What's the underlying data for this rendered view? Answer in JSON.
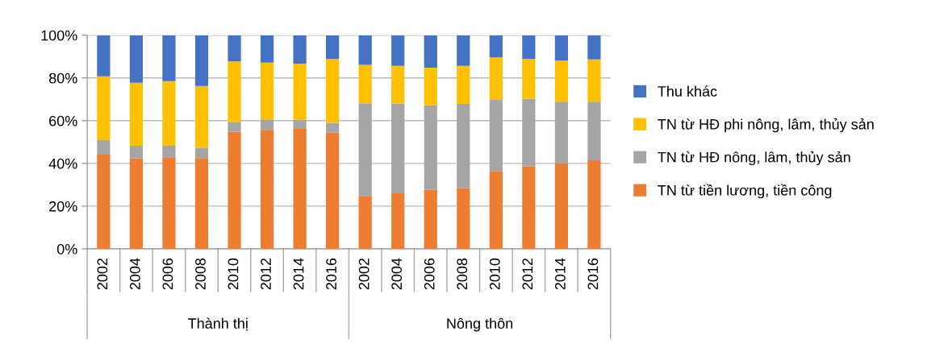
{
  "chart_data": {
    "type": "bar",
    "stacked": true,
    "categories": [
      "2002",
      "2004",
      "2006",
      "2008",
      "2010",
      "2012",
      "2014",
      "2016",
      "2002",
      "2004",
      "2006",
      "2008",
      "2010",
      "2012",
      "2014",
      "2016"
    ],
    "series": [
      {
        "name": "TN từ tiền lương, tiền công",
        "color": "#ed7d31",
        "values": [
          44.1,
          42.4,
          42.9,
          42.5,
          54.8,
          55.7,
          56.2,
          54.4,
          24.8,
          26.0,
          27.7,
          28.4,
          36.5,
          38.5,
          40.0,
          41.5
        ]
      },
      {
        "name": "TN từ HĐ nông, lâm, thủy sản",
        "color": "#a5a5a5",
        "values": [
          6.8,
          5.8,
          5.3,
          4.8,
          4.4,
          4.9,
          4.2,
          4.6,
          43.3,
          42.0,
          39.5,
          39.4,
          33.2,
          31.8,
          28.9,
          27.4
        ]
      },
      {
        "name": "TN từ HĐ phi nông, lâm, thủy sản",
        "color": "#ffc000",
        "values": [
          29.9,
          29.5,
          30.3,
          28.9,
          28.5,
          26.6,
          26.3,
          29.9,
          18.0,
          17.7,
          17.6,
          17.9,
          19.9,
          18.7,
          19.2,
          19.8
        ]
      },
      {
        "name": "Thu khác",
        "color": "#4472c4",
        "values": [
          19.2,
          22.3,
          21.5,
          23.8,
          12.3,
          12.8,
          13.3,
          11.1,
          13.9,
          14.3,
          15.2,
          14.3,
          10.4,
          11.0,
          11.9,
          11.3
        ]
      }
    ],
    "annotations": [
      "Thành thị",
      "Nông thôn"
    ],
    "ylim": [
      0,
      100
    ],
    "yticks": [
      {
        "value": 0,
        "label": "0%"
      },
      {
        "value": 20,
        "label": "20%"
      },
      {
        "value": 40,
        "label": "40%"
      },
      {
        "value": 60,
        "label": "60%"
      },
      {
        "value": 80,
        "label": "80%"
      },
      {
        "value": 100,
        "label": "100%"
      }
    ],
    "grid": "y",
    "legend": "right"
  }
}
